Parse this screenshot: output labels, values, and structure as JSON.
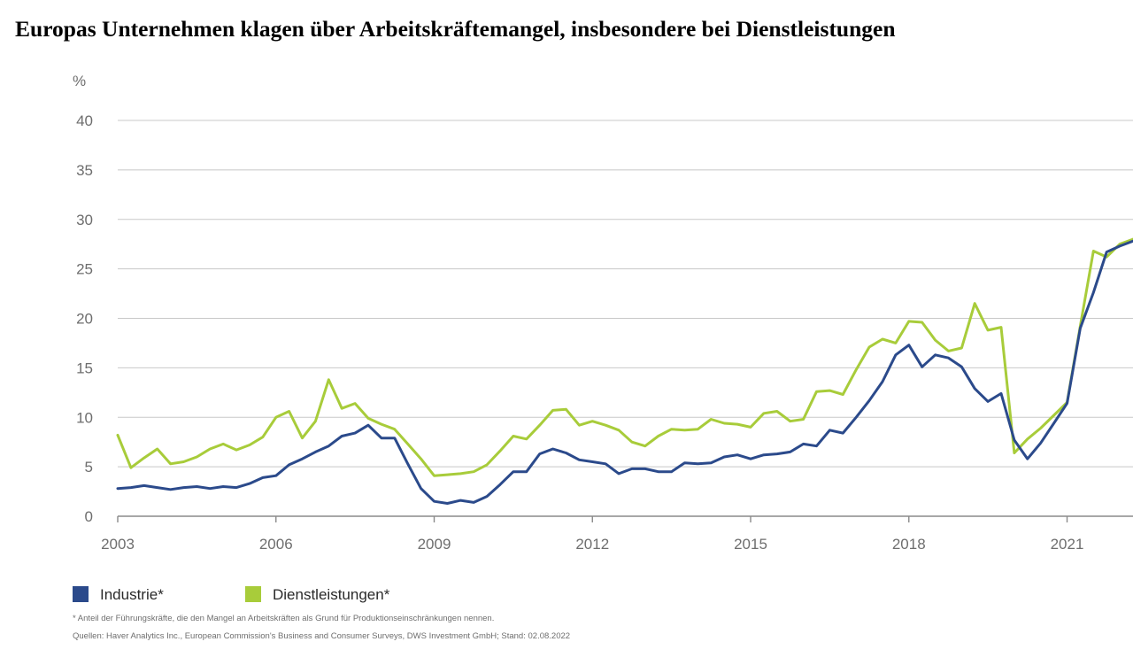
{
  "title": "Europas Unternehmen klagen über Arbeitskräftemangel, insbesondere bei Dienstleistungen",
  "footnote": "* Anteil der Führungskräfte, die den Mangel an Arbeitskräften als Grund für Produktionseinschränkungen nennen.",
  "source": "Quellen: Haver Analytics Inc., European Commission's Business and Consumer Surveys, DWS Investment GmbH; Stand: 02.08.2022",
  "colors": {
    "industrie": "#2b4a8b",
    "dienstleistungen": "#a8cc3a",
    "grid": "#c8c8c8",
    "text": "#6e6e6e"
  },
  "chart_data": {
    "type": "line",
    "title": "Europas Unternehmen klagen über Arbeitskräftemangel, insbesondere bei Dienstleistungen",
    "xlabel": "",
    "ylabel": "%",
    "ylim": [
      0,
      40
    ],
    "xlim": [
      2003.0,
      2022.25
    ],
    "x_ticks": [
      "2003",
      "2006",
      "2009",
      "2012",
      "2015",
      "2018",
      "2021"
    ],
    "y_ticks": [
      "0",
      "5",
      "10",
      "15",
      "20",
      "25",
      "30",
      "35",
      "40"
    ],
    "grid": "horizontal",
    "legend": "bottom-left",
    "x": [
      2003.0,
      2003.25,
      2003.5,
      2003.75,
      2004.0,
      2004.25,
      2004.5,
      2004.75,
      2005.0,
      2005.25,
      2005.5,
      2005.75,
      2006.0,
      2006.25,
      2006.5,
      2006.75,
      2007.0,
      2007.25,
      2007.5,
      2007.75,
      2008.0,
      2008.25,
      2008.5,
      2008.75,
      2009.0,
      2009.25,
      2009.5,
      2009.75,
      2010.0,
      2010.25,
      2010.5,
      2010.75,
      2011.0,
      2011.25,
      2011.5,
      2011.75,
      2012.0,
      2012.25,
      2012.5,
      2012.75,
      2013.0,
      2013.25,
      2013.5,
      2013.75,
      2014.0,
      2014.25,
      2014.5,
      2014.75,
      2015.0,
      2015.25,
      2015.5,
      2015.75,
      2016.0,
      2016.25,
      2016.5,
      2016.75,
      2017.0,
      2017.25,
      2017.5,
      2017.75,
      2018.0,
      2018.25,
      2018.5,
      2018.75,
      2019.0,
      2019.25,
      2019.5,
      2019.75,
      2020.0,
      2020.25,
      2020.5,
      2020.75,
      2021.0,
      2021.25,
      2021.5,
      2021.75,
      2022.0,
      2022.25
    ],
    "series": [
      {
        "name": "Industrie*",
        "color": "#2b4a8b",
        "values": [
          2.8,
          2.9,
          3.1,
          2.9,
          2.7,
          2.9,
          3.0,
          2.8,
          3.0,
          2.9,
          3.3,
          3.9,
          4.1,
          5.2,
          5.8,
          6.5,
          7.1,
          8.1,
          8.4,
          9.2,
          7.9,
          7.9,
          5.3,
          2.8,
          1.5,
          1.3,
          1.6,
          1.4,
          2.0,
          3.2,
          4.5,
          4.5,
          6.3,
          6.8,
          6.4,
          5.7,
          5.5,
          5.3,
          4.3,
          4.8,
          4.8,
          4.5,
          4.5,
          5.4,
          5.3,
          5.4,
          6.0,
          6.2,
          5.8,
          6.2,
          6.3,
          6.5,
          7.3,
          7.1,
          8.7,
          8.4,
          10.0,
          11.7,
          13.6,
          16.3,
          17.3,
          15.1,
          16.3,
          16.0,
          15.1,
          12.9,
          11.6,
          12.4,
          7.7,
          5.8,
          7.4,
          9.4,
          11.4,
          19.0,
          22.6,
          26.7,
          27.3,
          27.8
        ]
      },
      {
        "name": "Dienstleistungen*",
        "color": "#a8cc3a",
        "values": [
          8.2,
          4.9,
          5.9,
          6.8,
          5.3,
          5.5,
          6.0,
          6.8,
          7.3,
          6.7,
          7.2,
          8.0,
          10.0,
          10.6,
          7.9,
          9.6,
          13.8,
          10.9,
          11.4,
          9.9,
          9.3,
          8.8,
          7.3,
          5.8,
          4.1,
          4.2,
          4.3,
          4.5,
          5.2,
          6.6,
          8.1,
          7.8,
          9.2,
          10.7,
          10.8,
          9.2,
          9.6,
          9.2,
          8.7,
          7.5,
          7.1,
          8.1,
          8.8,
          8.7,
          8.8,
          9.8,
          9.4,
          9.3,
          9.0,
          10.4,
          10.6,
          9.6,
          9.8,
          12.6,
          12.7,
          12.3,
          14.8,
          17.1,
          17.9,
          17.5,
          19.7,
          19.6,
          17.8,
          16.7,
          17.0,
          21.5,
          18.8,
          19.1,
          6.4,
          7.8,
          8.9,
          10.2,
          11.5,
          19.2,
          26.8,
          26.2,
          27.5,
          28.0
        ]
      }
    ]
  }
}
